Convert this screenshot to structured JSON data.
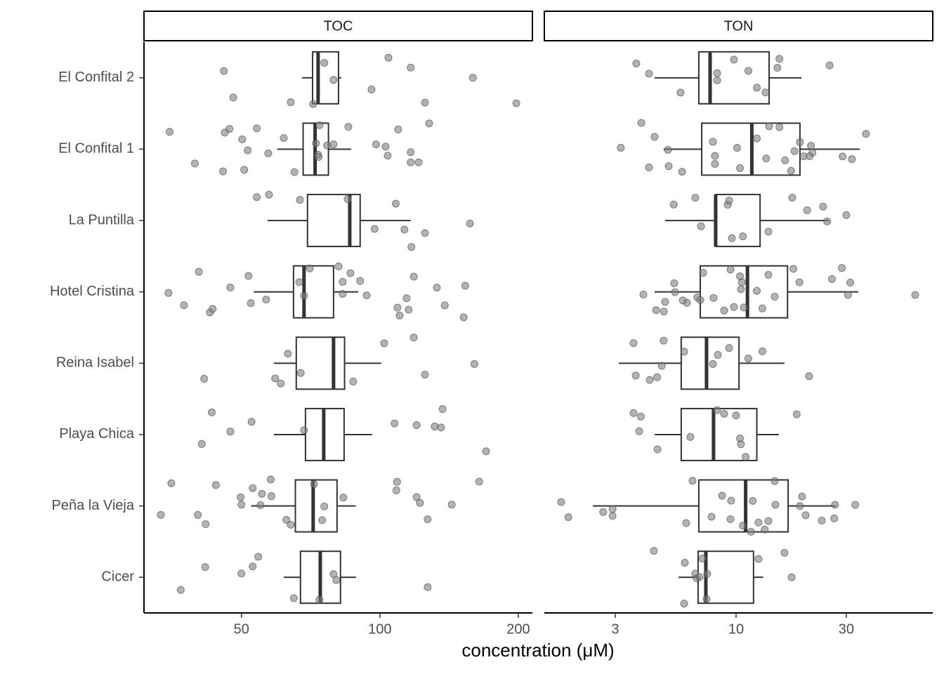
{
  "chart_data": {
    "type": "boxplot",
    "x_label": "concentration (μM)",
    "log_x": true,
    "categories": [
      "El Confital 2",
      "El Confital 1",
      "La Puntilla",
      "Hotel Cristina",
      "Reina Isabel",
      "Playa Chica",
      "Peña la Vieja",
      "Cicer"
    ],
    "box_color": "#333333",
    "point_color": "#808080",
    "panels": [
      {
        "title": "TOC",
        "xlim": [
          30.7,
          214.6
        ],
        "xticks": [
          50,
          100,
          200
        ],
        "boxes": [
          {
            "low": 67.7,
            "q1": 71.4,
            "median": 73.4,
            "q3": 81.3,
            "high": 82.4
          },
          {
            "low": 59.8,
            "q1": 68.1,
            "median": 72.3,
            "q3": 77.3,
            "high": 86.6
          },
          {
            "low": 57.0,
            "q1": 69.6,
            "median": 86.0,
            "q3": 90.6,
            "high": 116.7
          },
          {
            "low": 53.2,
            "q1": 64.9,
            "median": 68.4,
            "q3": 79.3,
            "high": 89.7
          },
          {
            "low": 58.8,
            "q1": 65.8,
            "median": 79.3,
            "q3": 83.8,
            "high": 100.7
          },
          {
            "low": 58.8,
            "q1": 68.9,
            "median": 75.5,
            "q3": 83.6,
            "high": 96.2
          },
          {
            "low": 52.5,
            "q1": 65.5,
            "median": 71.6,
            "q3": 80.7,
            "high": 88.6
          },
          {
            "low": 61.8,
            "q1": 67.2,
            "median": 74.2,
            "q3": 82.1,
            "high": 88.8
          }
        ],
        "points": [
          [
            45.8,
            64.0,
            48.0,
            71.6,
            75.7,
            79.3,
            95.9,
            104.4,
            116.7,
            125.3,
            159.3,
            198
          ],
          [
            34.9,
            51.6,
            57.2,
            47.1,
            50.2,
            50.7,
            54.0,
            39.6,
            45.6,
            46.0,
            61.8,
            65.2,
            73.9,
            73.4,
            79.3,
            85.4,
            72.6,
            76.8,
            73.6,
            98.1,
            102.9,
            109.6,
            121.4,
            116.7,
            128.0,
            116.7,
            104.0
          ],
          [
            54.0,
            57.4,
            67.0,
            85.1,
            97.4,
            108.3,
            113.1,
            117.1,
            125.3,
            157.0
          ],
          [
            37.5,
            40.4,
            34.7,
            42.7,
            43.3,
            47.3,
            51.8,
            52.4,
            56.6,
            66.8,
            68.4,
            70.4,
            81.3,
            83.0,
            86.3,
            90.6,
            93.6,
            83.0,
            109.2,
            110.4,
            114.3,
            115.5,
            118.5,
            133.0,
            138.4,
            152.1,
            153.3
          ],
          [
            41.5,
            59.2,
            60.9,
            63.1,
            67.3,
            87.5,
            102.2,
            118.5,
            125.3,
            160.5
          ],
          [
            41.0,
            43.1,
            47.3,
            52.6,
            68.4,
            107.6,
            120.2,
            131.6,
            135.8,
            136.9,
            170.2
          ],
          [
            33.4,
            35.2,
            40.2,
            50,
            55.0,
            55.4,
            57.9,
            52.9,
            44.0,
            41.8,
            49.8,
            58.1,
            62.6,
            64.0,
            71.9,
            74.9,
            75.7,
            83.3,
            108.6,
            109.0,
            120.2,
            127.0,
            143.3,
            164.4,
            122.2
          ],
          [
            36.9,
            50.0,
            52.9,
            54.4,
            65.0,
            73.9,
            79.3,
            80.4,
            127.0,
            41.7
          ]
        ]
      },
      {
        "title": "TON",
        "xlim": [
          1.48,
          71.0
        ],
        "xticks": [
          3,
          10,
          30
        ],
        "boxes": [
          {
            "low": 4.44,
            "q1": 6.9,
            "median": 7.72,
            "q3": 13.9,
            "high": 19.2
          },
          {
            "low": 4.86,
            "q1": 7.1,
            "median": 11.7,
            "q3": 18.9,
            "high": 34.3
          },
          {
            "low": 4.93,
            "q1": 8.16,
            "median": 8.16,
            "q3": 12.7,
            "high": 25.2
          },
          {
            "low": 4.44,
            "q1": 7.0,
            "median": 11.2,
            "q3": 16.7,
            "high": 33.8
          },
          {
            "low": 3.11,
            "q1": 5.79,
            "median": 7.45,
            "q3": 10.3,
            "high": 16.2
          },
          {
            "low": 4.44,
            "q1": 5.79,
            "median": 7.99,
            "q3": 12.3,
            "high": 15.3
          },
          {
            "low": 2.4,
            "q1": 6.9,
            "median": 11.0,
            "q3": 16.8,
            "high": 27.0
          },
          {
            "low": 5.63,
            "q1": 6.85,
            "median": 7.4,
            "q3": 11.9,
            "high": 13.1
          }
        ],
        "points": [
          [
            3.7,
            4.2,
            5.75,
            8.28,
            8.28,
            9.79,
            11.3,
            13.4,
            12.3,
            15.4,
            15.1,
            25.4
          ],
          [
            3.17,
            3.89,
            4.2,
            4.44,
            5.11,
            5.07,
            5.84,
            8.1,
            7.94,
            8.1,
            10.1,
            10.4,
            12.3,
            13.9,
            13.5,
            15.4,
            16.3,
            17.3,
            17.9,
            18.9,
            19.6,
            21.1,
            21.4,
            20.8,
            28.9,
            31.7,
            36.5
          ],
          [
            5.37,
            6.66,
            7.05,
            9.2,
            9.33,
            9.59,
            10.7,
            13.8,
            17.5,
            20.3,
            24.8,
            23.8,
            30.0
          ],
          [
            3.97,
            4.51,
            5.44,
            6.13,
            5.4,
            4.87,
            4.93,
            5.88,
            6.8,
            7.0,
            7.2,
            7.99,
            8.88,
            9.46,
            10.4,
            10.6,
            9.79,
            10.5,
            10.8,
            12.3,
            13.0,
            13.8,
            14.7,
            17.7,
            18.8,
            26.0,
            28.7,
            30.5,
            31.2,
            59.6
          ],
          [
            3.6,
            3.68,
            4.23,
            4.55,
            4.77,
            4.86,
            5.96,
            7.94,
            8.34,
            9.33,
            11.3,
            13.0,
            20.7
          ],
          [
            3.6,
            4.57,
            3.81,
            3.87,
            6.34,
            8.28,
            8.88,
            10.0,
            10.5,
            11.0,
            10.4,
            18.3
          ],
          [
            1.75,
            1.88,
            2.66,
            2.92,
            2.92,
            6.08,
            6.48,
            7.83,
            8.7,
            9.52,
            9.46,
            10.7,
            11.6,
            11.8,
            12.5,
            13.3,
            13.8,
            14.7,
            14.8,
            18.9,
            19.3,
            20.0,
            23.5,
            26.6,
            26.8,
            32.8
          ],
          [
            4.41,
            5.96,
            6.0,
            6.66,
            6.75,
            6.95,
            7.15,
            7.45,
            7.5,
            12.5,
            16.2,
            17.4
          ]
        ]
      }
    ]
  }
}
